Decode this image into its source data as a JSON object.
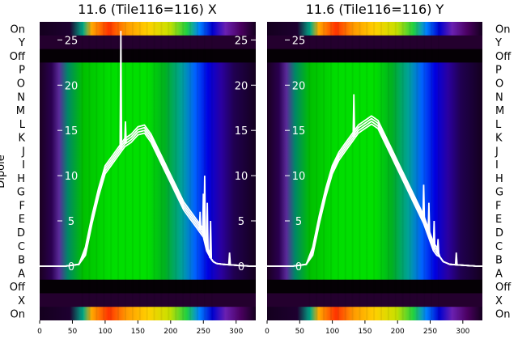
{
  "chart_data": [
    {
      "type": "heatmap",
      "title": "11.6 (Tile116=116) X",
      "ylabel": "Dipole",
      "xlim": [
        0,
        330
      ],
      "xticks": [
        0,
        50,
        100,
        150,
        200,
        250,
        300
      ],
      "overlay_ylim": [
        -6,
        27
      ],
      "overlay_yticks": [
        0,
        5,
        10,
        15,
        20,
        25
      ],
      "rows": [
        "On",
        "Y",
        "Off",
        "P",
        "O",
        "N",
        "M",
        "L",
        "K",
        "J",
        "I",
        "H",
        "G",
        "F",
        "E",
        "D",
        "C",
        "B",
        "A",
        "Off",
        "X",
        "On"
      ],
      "band_low": 65,
      "band_high": 270,
      "overlay_x": [
        0,
        40,
        60,
        70,
        80,
        90,
        100,
        110,
        120,
        125,
        130,
        140,
        150,
        160,
        170,
        180,
        190,
        200,
        210,
        220,
        230,
        240,
        245,
        250,
        255,
        260,
        265,
        270,
        280,
        300,
        320,
        330
      ],
      "overlay_y": [
        0,
        0,
        0.2,
        1.5,
        5,
        8,
        10.5,
        11.5,
        12.5,
        13,
        13.5,
        14,
        14.8,
        15,
        14,
        12.5,
        11,
        9.5,
        8,
        6.5,
        5.5,
        4.5,
        4,
        3.5,
        2,
        1,
        0.5,
        0.3,
        0.2,
        0.1,
        0,
        0
      ],
      "overlay_spikes": [
        {
          "x": 124,
          "y": 26
        },
        {
          "x": 131,
          "y": 16
        },
        {
          "x": 245,
          "y": 6
        },
        {
          "x": 250,
          "y": 8
        },
        {
          "x": 252,
          "y": 10
        },
        {
          "x": 256,
          "y": 7
        },
        {
          "x": 261,
          "y": 5
        },
        {
          "x": 290,
          "y": 1.5
        }
      ]
    },
    {
      "type": "heatmap",
      "title": "11.6 (Tile116=116) Y",
      "ylabel": "",
      "xlim": [
        0,
        330
      ],
      "xticks": [
        0,
        50,
        100,
        150,
        200,
        250,
        300
      ],
      "overlay_ylim": [
        -6,
        27
      ],
      "overlay_yticks": [
        0,
        5,
        10,
        15,
        20,
        25
      ],
      "rows": [
        "On",
        "Y",
        "Off",
        "P",
        "O",
        "N",
        "M",
        "L",
        "K",
        "J",
        "I",
        "H",
        "G",
        "F",
        "E",
        "D",
        "C",
        "B",
        "A",
        "Off",
        "X",
        "On"
      ],
      "band_low": 65,
      "band_high": 270,
      "overlay_x": [
        0,
        40,
        60,
        70,
        80,
        90,
        100,
        110,
        120,
        130,
        140,
        150,
        160,
        170,
        180,
        190,
        200,
        210,
        220,
        230,
        240,
        245,
        250,
        255,
        260,
        265,
        270,
        280,
        300,
        320,
        330
      ],
      "overlay_y": [
        0,
        0,
        0.2,
        1.5,
        5,
        8,
        10.5,
        12,
        13,
        14,
        15,
        15.5,
        16,
        15.5,
        14,
        12.5,
        11,
        9.5,
        8,
        6.5,
        5,
        4,
        3,
        2,
        1.5,
        1,
        0.5,
        0.2,
        0.1,
        0,
        0
      ],
      "overlay_spikes": [
        {
          "x": 133,
          "y": 19
        },
        {
          "x": 240,
          "y": 9
        },
        {
          "x": 248,
          "y": 7
        },
        {
          "x": 256,
          "y": 5
        },
        {
          "x": 262,
          "y": 3
        },
        {
          "x": 290,
          "y": 1.5
        }
      ]
    }
  ]
}
